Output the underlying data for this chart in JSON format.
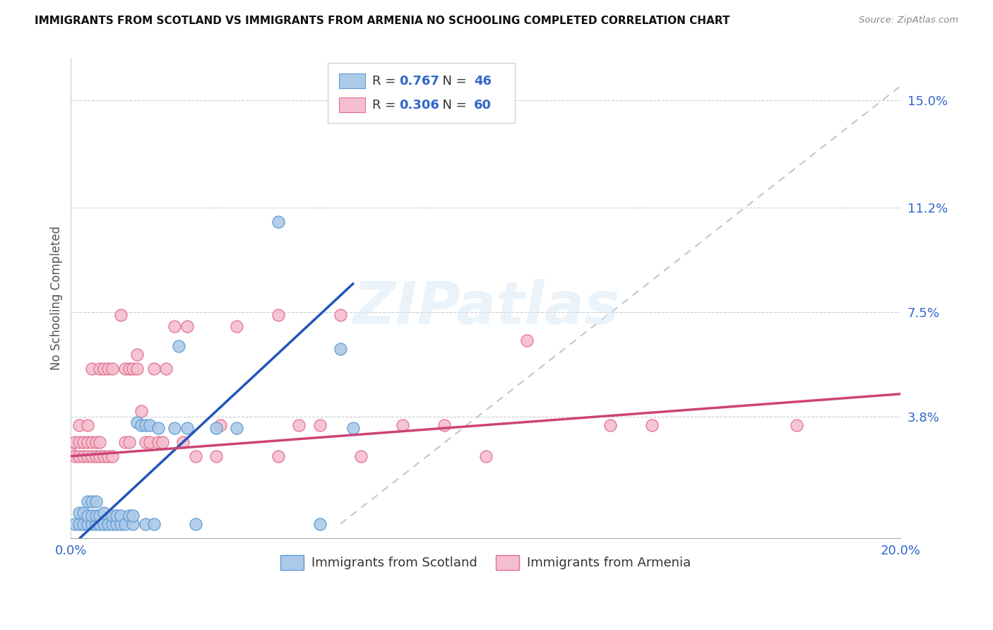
{
  "title": "IMMIGRANTS FROM SCOTLAND VS IMMIGRANTS FROM ARMENIA NO SCHOOLING COMPLETED CORRELATION CHART",
  "source": "Source: ZipAtlas.com",
  "ylabel": "No Schooling Completed",
  "xlim": [
    0.0,
    0.2
  ],
  "ylim": [
    -0.005,
    0.165
  ],
  "ytick_positions": [
    0.038,
    0.075,
    0.112,
    0.15
  ],
  "ytick_labels": [
    "3.8%",
    "7.5%",
    "11.2%",
    "15.0%"
  ],
  "xtick_positions": [
    0.0,
    0.05,
    0.1,
    0.15,
    0.2
  ],
  "xticklabels": [
    "0.0%",
    "",
    "",
    "",
    "20.0%"
  ],
  "scotland_color": "#adc9e8",
  "scotland_edge": "#5b9bd5",
  "armenia_color": "#f5bece",
  "armenia_edge": "#e07090",
  "scotland_R": 0.767,
  "scotland_N": 46,
  "armenia_R": 0.306,
  "armenia_N": 60,
  "trendline_scotland_color": "#2255bb",
  "trendline_armenia_color": "#cc4477",
  "dashed_line_color": "#b0b8c8",
  "watermark": "ZIPatlas",
  "legend_scotland": "Immigrants from Scotland",
  "legend_armenia": "Immigrants from Armenia",
  "scotland_trendline": [
    [
      0.0,
      -0.008
    ],
    [
      0.068,
      0.085
    ]
  ],
  "armenia_trendline": [
    [
      0.0,
      0.024
    ],
    [
      0.2,
      0.046
    ]
  ],
  "dashed_line": [
    [
      0.065,
      0.0
    ],
    [
      0.2,
      0.155
    ]
  ],
  "scotland_points": [
    [
      0.001,
      0.0
    ],
    [
      0.002,
      0.0
    ],
    [
      0.002,
      0.004
    ],
    [
      0.003,
      0.0
    ],
    [
      0.003,
      0.004
    ],
    [
      0.004,
      0.0
    ],
    [
      0.004,
      0.003
    ],
    [
      0.004,
      0.008
    ],
    [
      0.005,
      0.0
    ],
    [
      0.005,
      0.003
    ],
    [
      0.005,
      0.008
    ],
    [
      0.006,
      0.0
    ],
    [
      0.006,
      0.003
    ],
    [
      0.006,
      0.008
    ],
    [
      0.007,
      0.0
    ],
    [
      0.007,
      0.003
    ],
    [
      0.008,
      0.0
    ],
    [
      0.008,
      0.004
    ],
    [
      0.009,
      0.0
    ],
    [
      0.01,
      0.0
    ],
    [
      0.01,
      0.003
    ],
    [
      0.011,
      0.0
    ],
    [
      0.011,
      0.003
    ],
    [
      0.012,
      0.0
    ],
    [
      0.012,
      0.003
    ],
    [
      0.013,
      0.0
    ],
    [
      0.014,
      0.003
    ],
    [
      0.015,
      0.0
    ],
    [
      0.015,
      0.003
    ],
    [
      0.016,
      0.036
    ],
    [
      0.017,
      0.035
    ],
    [
      0.018,
      0.0
    ],
    [
      0.018,
      0.035
    ],
    [
      0.019,
      0.035
    ],
    [
      0.02,
      0.0
    ],
    [
      0.021,
      0.034
    ],
    [
      0.025,
      0.034
    ],
    [
      0.026,
      0.063
    ],
    [
      0.028,
      0.034
    ],
    [
      0.03,
      0.0
    ],
    [
      0.035,
      0.034
    ],
    [
      0.04,
      0.034
    ],
    [
      0.05,
      0.107
    ],
    [
      0.06,
      0.0
    ],
    [
      0.065,
      0.062
    ],
    [
      0.068,
      0.034
    ]
  ],
  "armenia_points": [
    [
      0.0,
      0.025
    ],
    [
      0.001,
      0.024
    ],
    [
      0.001,
      0.029
    ],
    [
      0.002,
      0.024
    ],
    [
      0.002,
      0.029
    ],
    [
      0.002,
      0.035
    ],
    [
      0.003,
      0.024
    ],
    [
      0.003,
      0.029
    ],
    [
      0.004,
      0.024
    ],
    [
      0.004,
      0.029
    ],
    [
      0.004,
      0.035
    ],
    [
      0.005,
      0.024
    ],
    [
      0.005,
      0.029
    ],
    [
      0.005,
      0.055
    ],
    [
      0.006,
      0.024
    ],
    [
      0.006,
      0.029
    ],
    [
      0.007,
      0.024
    ],
    [
      0.007,
      0.029
    ],
    [
      0.007,
      0.055
    ],
    [
      0.008,
      0.024
    ],
    [
      0.008,
      0.055
    ],
    [
      0.009,
      0.024
    ],
    [
      0.009,
      0.055
    ],
    [
      0.01,
      0.024
    ],
    [
      0.01,
      0.055
    ],
    [
      0.012,
      0.074
    ],
    [
      0.013,
      0.029
    ],
    [
      0.013,
      0.055
    ],
    [
      0.014,
      0.029
    ],
    [
      0.014,
      0.055
    ],
    [
      0.015,
      0.055
    ],
    [
      0.016,
      0.055
    ],
    [
      0.016,
      0.06
    ],
    [
      0.017,
      0.04
    ],
    [
      0.018,
      0.029
    ],
    [
      0.019,
      0.029
    ],
    [
      0.02,
      0.055
    ],
    [
      0.021,
      0.029
    ],
    [
      0.022,
      0.029
    ],
    [
      0.023,
      0.055
    ],
    [
      0.025,
      0.07
    ],
    [
      0.027,
      0.029
    ],
    [
      0.028,
      0.07
    ],
    [
      0.03,
      0.024
    ],
    [
      0.035,
      0.024
    ],
    [
      0.036,
      0.035
    ],
    [
      0.04,
      0.07
    ],
    [
      0.05,
      0.024
    ],
    [
      0.05,
      0.074
    ],
    [
      0.055,
      0.035
    ],
    [
      0.06,
      0.035
    ],
    [
      0.065,
      0.074
    ],
    [
      0.07,
      0.024
    ],
    [
      0.08,
      0.035
    ],
    [
      0.09,
      0.035
    ],
    [
      0.1,
      0.024
    ],
    [
      0.11,
      0.065
    ],
    [
      0.13,
      0.035
    ],
    [
      0.14,
      0.035
    ],
    [
      0.175,
      0.035
    ]
  ]
}
